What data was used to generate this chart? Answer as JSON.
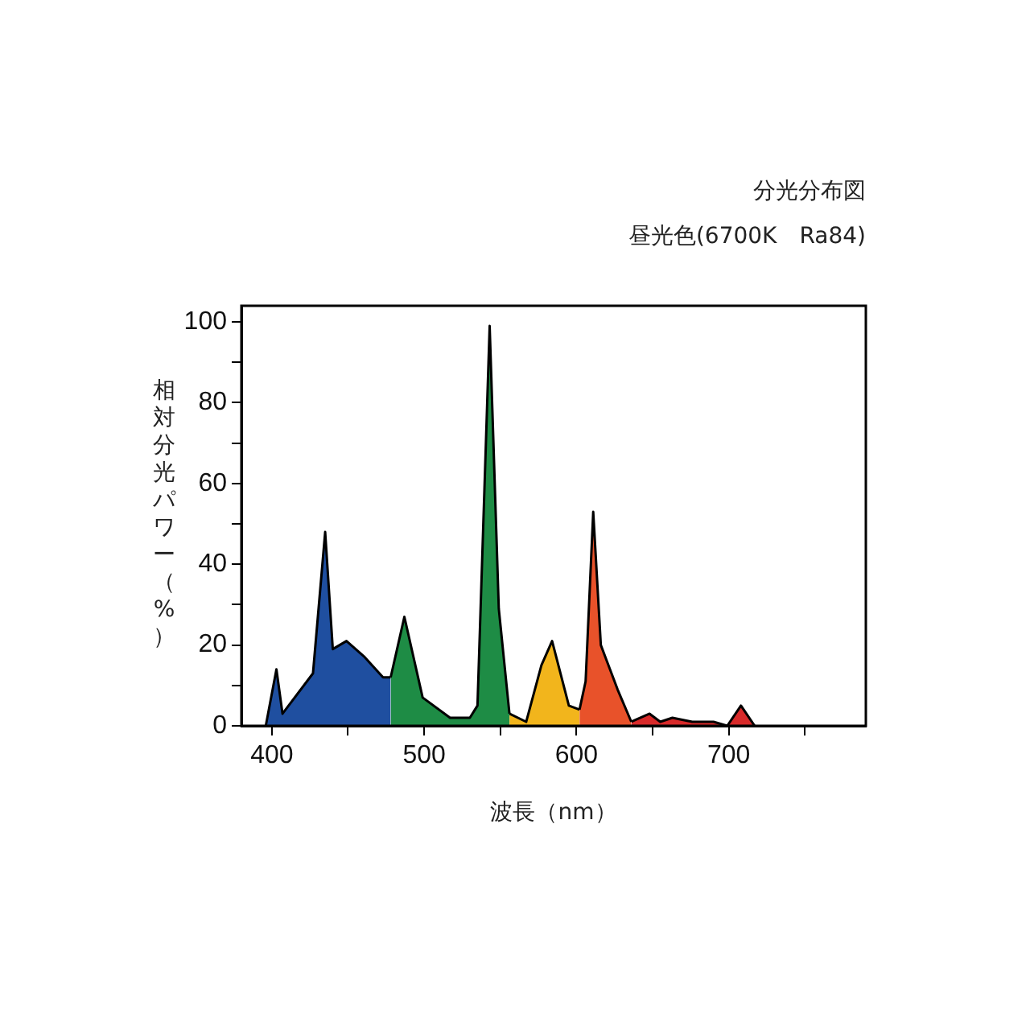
{
  "chart_data": {
    "type": "area",
    "title": "分光分布図",
    "subtitle": "昼光色(6700K　Ra84)",
    "xlabel": "波長（nm）",
    "ylabel": "相対分光パワー（%）",
    "series": [
      {
        "color": "#1f4fa0",
        "x": [
          396,
          403,
          407,
          427,
          435,
          440,
          449,
          461,
          473,
          478
        ],
        "values": [
          0,
          14,
          3,
          13,
          48,
          19,
          21,
          17,
          12,
          12
        ]
      },
      {
        "color": "#1e8c45",
        "x": [
          478,
          487,
          499,
          517,
          530,
          535,
          543,
          549,
          556
        ],
        "values": [
          12,
          27,
          7,
          2,
          2,
          5,
          99,
          29,
          3
        ]
      },
      {
        "color": "#f2b51c",
        "x": [
          556,
          567,
          577,
          584,
          595,
          602
        ],
        "values": [
          3,
          1,
          15,
          21,
          5,
          4
        ]
      },
      {
        "color": "#e8522a",
        "x": [
          602,
          606,
          611,
          616,
          620,
          627,
          636
        ],
        "values": [
          4,
          11,
          53,
          20,
          16,
          9,
          1
        ]
      },
      {
        "color": "#d82a2a",
        "x": [
          636,
          648,
          655,
          663,
          676,
          690,
          699,
          708,
          717
        ],
        "values": [
          1,
          3,
          1,
          2,
          1,
          1,
          0,
          5,
          0
        ]
      }
    ],
    "xlim": [
      380,
      790
    ],
    "ylim": [
      0,
      104
    ],
    "xticks": [
      400,
      {
        "value": 450,
        "label": null
      },
      500,
      {
        "value": 550,
        "label": null
      },
      600,
      {
        "value": 650,
        "label": null
      },
      700,
      {
        "value": 750,
        "label": null
      }
    ],
    "yticks": [
      0,
      {
        "value": 10,
        "label": null
      },
      20,
      {
        "value": 30,
        "label": null
      },
      40,
      {
        "value": 50,
        "label": null
      },
      60,
      {
        "value": 70,
        "label": null
      },
      80,
      {
        "value": 90,
        "label": null
      },
      100
    ],
    "grid": false,
    "legend": false,
    "marker": "none",
    "line_style": "solid"
  }
}
